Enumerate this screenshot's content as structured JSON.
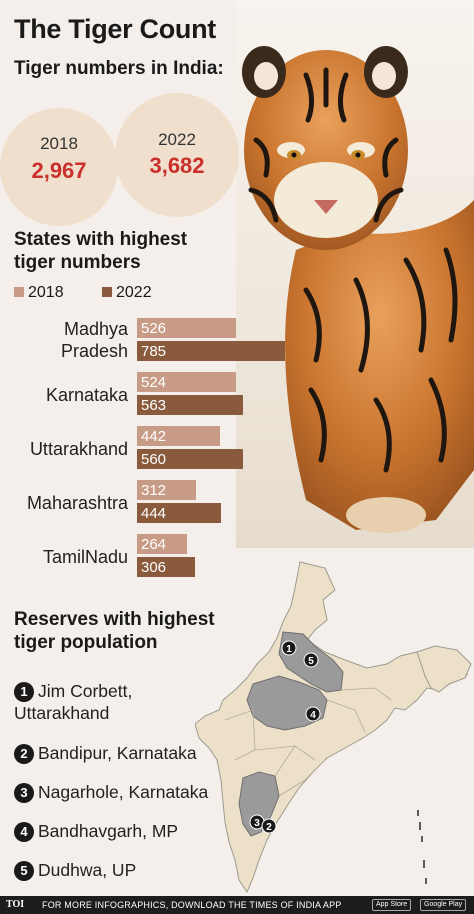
{
  "title": "The Tiger Count",
  "subtitle": "Tiger numbers in India:",
  "totals": [
    {
      "year": "2018",
      "value": "2,967"
    },
    {
      "year": "2022",
      "value": "3,682"
    }
  ],
  "states_title": "States with highest tiger numbers",
  "chart_data": {
    "type": "bar",
    "orientation": "horizontal",
    "title": "States with highest tiger numbers",
    "categories": [
      "Madhya Pradesh",
      "Karnataka",
      "Uttarakhand",
      "Maharashtra",
      "TamilNadu"
    ],
    "series": [
      {
        "name": "2018",
        "values": [
          526,
          524,
          442,
          312,
          264
        ],
        "color": "#c79b86"
      },
      {
        "name": "2022",
        "values": [
          785,
          563,
          560,
          444,
          306
        ],
        "color": "#8a5a3c"
      }
    ]
  },
  "state_labels": [
    {
      "line1": "Madhya",
      "line2": "Pradesh"
    },
    {
      "line1": "Karnataka",
      "line2": ""
    },
    {
      "line1": "Uttarakhand",
      "line2": ""
    },
    {
      "line1": "Maharashtra",
      "line2": ""
    },
    {
      "line1": "TamilNadu",
      "line2": ""
    }
  ],
  "reserves_title": "Reserves with highest tiger population",
  "reserves": [
    {
      "num": "1",
      "line1": "Jim Corbett,",
      "line2": "Uttarakhand"
    },
    {
      "num": "2",
      "line1": "Bandipur, Karnataka",
      "line2": ""
    },
    {
      "num": "3",
      "line1": "Nagarhole, Karnataka",
      "line2": ""
    },
    {
      "num": "4",
      "line1": "Bandhavgarh, MP",
      "line2": ""
    },
    {
      "num": "5",
      "line1": "Dudhwa, UP",
      "line2": ""
    }
  ],
  "map_markers": [
    "1",
    "5",
    "4",
    "3",
    "2"
  ],
  "footer": {
    "logo": "TOI",
    "text": "FOR MORE INFOGRAPHICS, DOWNLOAD THE TIMES OF INDIA APP",
    "app_store": "App Store",
    "google_play": "Google Play"
  },
  "colors": {
    "accent": "#c9302c",
    "bar2018": "#c79b86",
    "bar2022": "#8a5a3c",
    "circle": "#f0dfcc",
    "map_highlight": "#9a9a9a",
    "map_base": "#ece0c8"
  }
}
